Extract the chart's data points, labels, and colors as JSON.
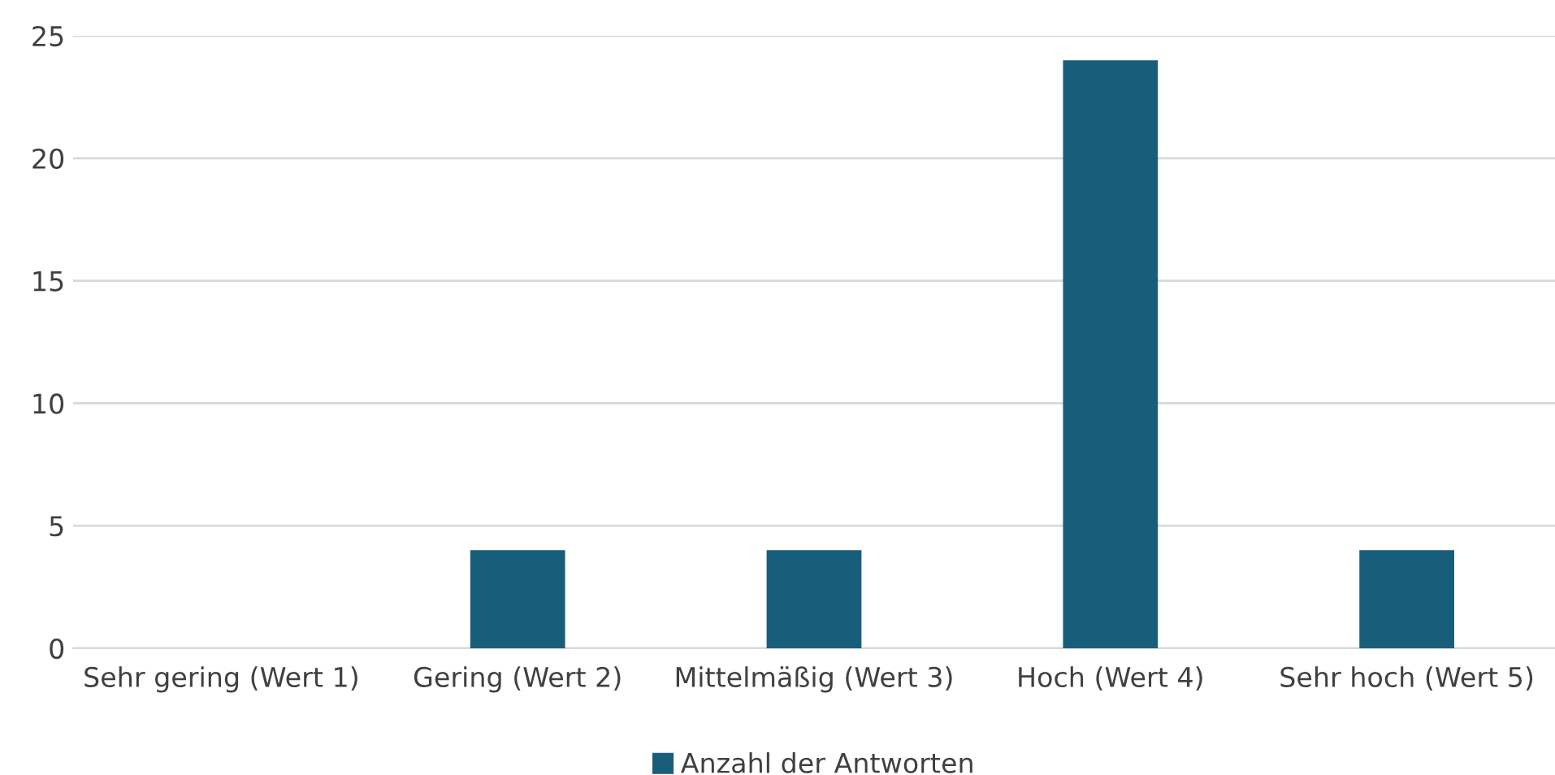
{
  "chart_data": {
    "type": "bar",
    "categories": [
      "Sehr gering (Wert 1)",
      "Gering (Wert 2)",
      "Mittelmäßig (Wert 3)",
      "Hoch (Wert 4)",
      "Sehr hoch (Wert 5)"
    ],
    "series": [
      {
        "name": "Anzahl der Antworten",
        "color": "#185e7a",
        "values": [
          0,
          4,
          4,
          24,
          4
        ]
      }
    ],
    "ylim": [
      0,
      25
    ],
    "yticks": [
      0,
      5,
      10,
      15,
      20,
      25
    ],
    "grid": "y",
    "legend": "bottom"
  }
}
